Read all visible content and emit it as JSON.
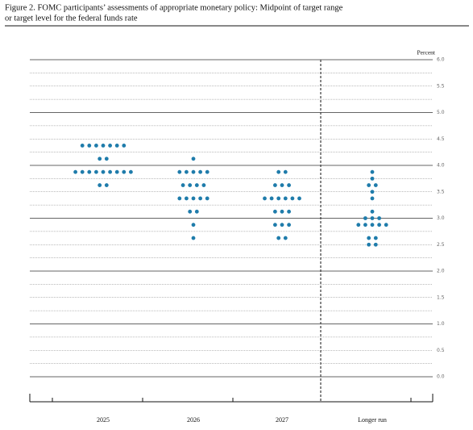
{
  "chart_data": {
    "type": "dot",
    "title_lines": [
      "Figure 2.  FOMC participants’ assessments of appropriate monetary policy:  Midpoint of target range",
      "or target level for the federal funds rate"
    ],
    "y_axis_label": "Percent",
    "categories": [
      "2025",
      "2026",
      "2027",
      "Longer run"
    ],
    "color": "#1f7cab",
    "values": [
      [
        4.375,
        4.375,
        4.375,
        4.375,
        4.375,
        4.375,
        4.375,
        4.125,
        4.125,
        3.875,
        3.875,
        3.875,
        3.875,
        3.875,
        3.875,
        3.875,
        3.875,
        3.875,
        3.625,
        3.625
      ],
      [
        4.125,
        3.875,
        3.875,
        3.875,
        3.875,
        3.875,
        3.625,
        3.625,
        3.625,
        3.625,
        3.375,
        3.375,
        3.375,
        3.375,
        3.375,
        3.125,
        3.125,
        2.875,
        2.625
      ],
      [
        3.875,
        3.875,
        3.625,
        3.625,
        3.625,
        3.375,
        3.375,
        3.375,
        3.375,
        3.375,
        3.375,
        3.125,
        3.125,
        3.125,
        2.875,
        2.875,
        2.875,
        2.625,
        2.625
      ],
      [
        3.875,
        3.75,
        3.625,
        3.625,
        3.5,
        3.375,
        3.125,
        3.0,
        3.0,
        3.0,
        2.875,
        2.875,
        2.875,
        2.875,
        2.875,
        2.625,
        2.625,
        2.5,
        2.5
      ]
    ],
    "ylim": [
      0,
      6
    ],
    "yticks": [
      {
        "value": 0,
        "label": "0.0"
      },
      0.5,
      {
        "value": 1,
        "label": "1.0"
      },
      1.5,
      {
        "value": 2,
        "label": "2.0"
      },
      2.5,
      {
        "value": 3,
        "label": "3.0"
      },
      3.5,
      {
        "value": 4,
        "label": "4.0"
      },
      4.5,
      {
        "value": 5,
        "label": "5.0"
      },
      5.5,
      {
        "value": 6,
        "label": "6.0"
      }
    ],
    "y_minor_ticks": [
      0.25,
      0.75,
      1.25,
      1.75,
      2.25,
      2.75,
      3.25,
      3.75,
      4.25,
      4.75,
      5.25,
      5.75
    ],
    "grid": true
  }
}
